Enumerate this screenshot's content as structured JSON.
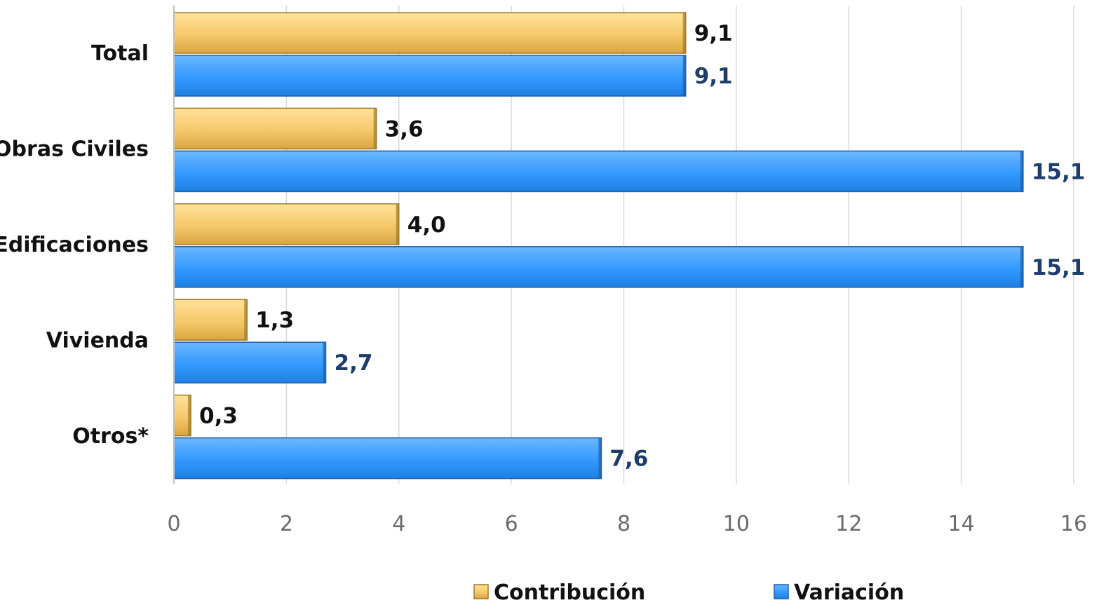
{
  "chart_data": {
    "type": "bar",
    "orientation": "horizontal",
    "categories": [
      "Total",
      "Obras Civiles",
      "Edificaciones",
      "Vivienda",
      "Otros*"
    ],
    "series": [
      {
        "name": "Contribución",
        "values": [
          9.1,
          3.6,
          4.0,
          1.3,
          0.3
        ],
        "labels": [
          "9,1",
          "3,6",
          "4,0",
          "1,3",
          "0,3"
        ],
        "color": "#f5c86a"
      },
      {
        "name": "Variación",
        "values": [
          9.1,
          15.1,
          15.1,
          2.7,
          7.6
        ],
        "labels": [
          "9,1",
          "15,1",
          "15,1",
          "2,7",
          "7,6"
        ],
        "color": "#3399ff"
      }
    ],
    "xlim": [
      0,
      16
    ],
    "xticks": [
      0,
      2,
      4,
      6,
      8,
      10,
      12,
      14,
      16
    ],
    "grid": true,
    "legend_position": "bottom",
    "title": "",
    "xlabel": "",
    "ylabel": ""
  }
}
